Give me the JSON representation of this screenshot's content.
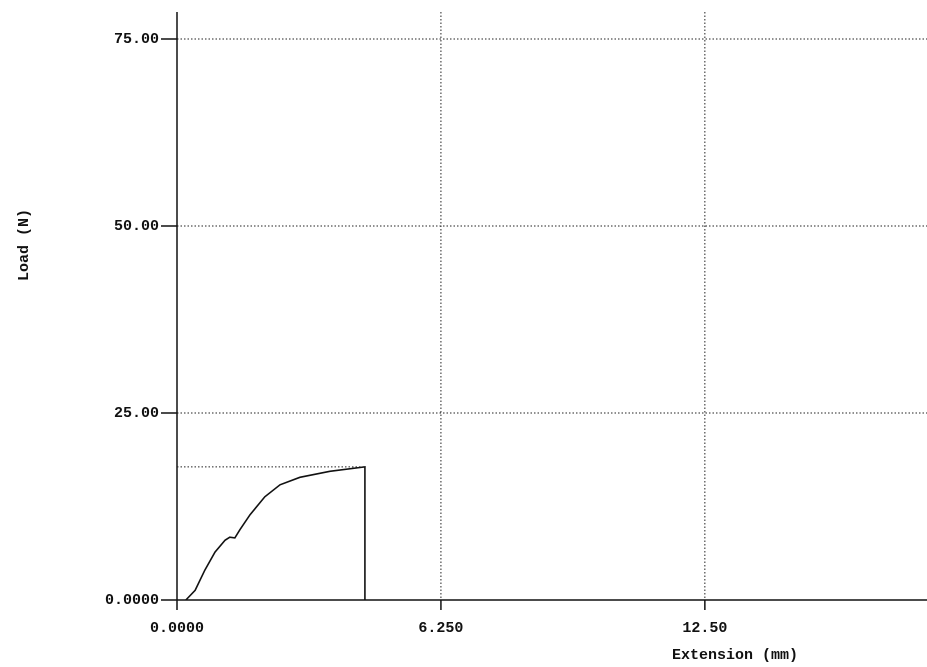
{
  "chart_data": {
    "type": "line",
    "x_label": "Extension (mm)",
    "y_label": "Load (N)",
    "x": [
      0.21,
      0.43,
      0.66,
      0.9,
      1.14,
      1.25,
      1.37,
      1.49,
      1.73,
      2.08,
      2.44,
      2.91,
      3.62,
      4.45,
      4.45
    ],
    "series": [
      {
        "color": "#111111",
        "values": [
          0,
          1.3,
          4.0,
          6.4,
          8.0,
          8.4,
          8.3,
          9.4,
          11.4,
          13.8,
          15.4,
          16.4,
          17.2,
          17.8,
          0
        ]
      }
    ],
    "xlim": [
      0,
      17.5
    ],
    "ylim": [
      0,
      75
    ],
    "xticks": [
      {
        "value": 0,
        "label": "0.0000"
      },
      {
        "value": 6.25,
        "label": "6.250"
      },
      {
        "value": 12.5,
        "label": "12.50"
      }
    ],
    "yticks": [
      {
        "value": 0,
        "label": "0.0000"
      },
      {
        "value": 25,
        "label": "25.00"
      },
      {
        "value": 50,
        "label": "50.00"
      },
      {
        "value": 75,
        "label": "75.00"
      }
    ],
    "grid": true
  }
}
